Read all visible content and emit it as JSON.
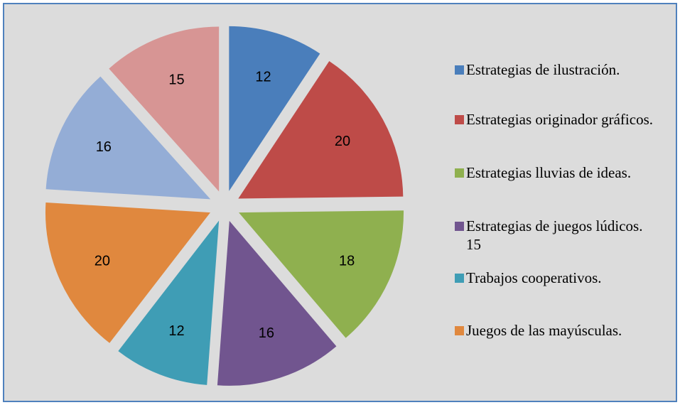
{
  "chart_data": {
    "type": "pie",
    "categories": [
      "Estrategias de ilustración.",
      "Estrategias originador gráficos.",
      "Estrategias lluvias de ideas.",
      "Estrategias de juegos lúdicos.    15",
      "Trabajos cooperativos.",
      "Juegos de las mayúsculas.",
      null,
      null
    ],
    "values": [
      12,
      20,
      18,
      16,
      12,
      20,
      16,
      15
    ],
    "colors": [
      "#4a7ebb",
      "#be4b48",
      "#8fb04f",
      "#71558f",
      "#3f9db5",
      "#e0883e",
      "#94add6",
      "#d79594"
    ],
    "legend": "right"
  }
}
